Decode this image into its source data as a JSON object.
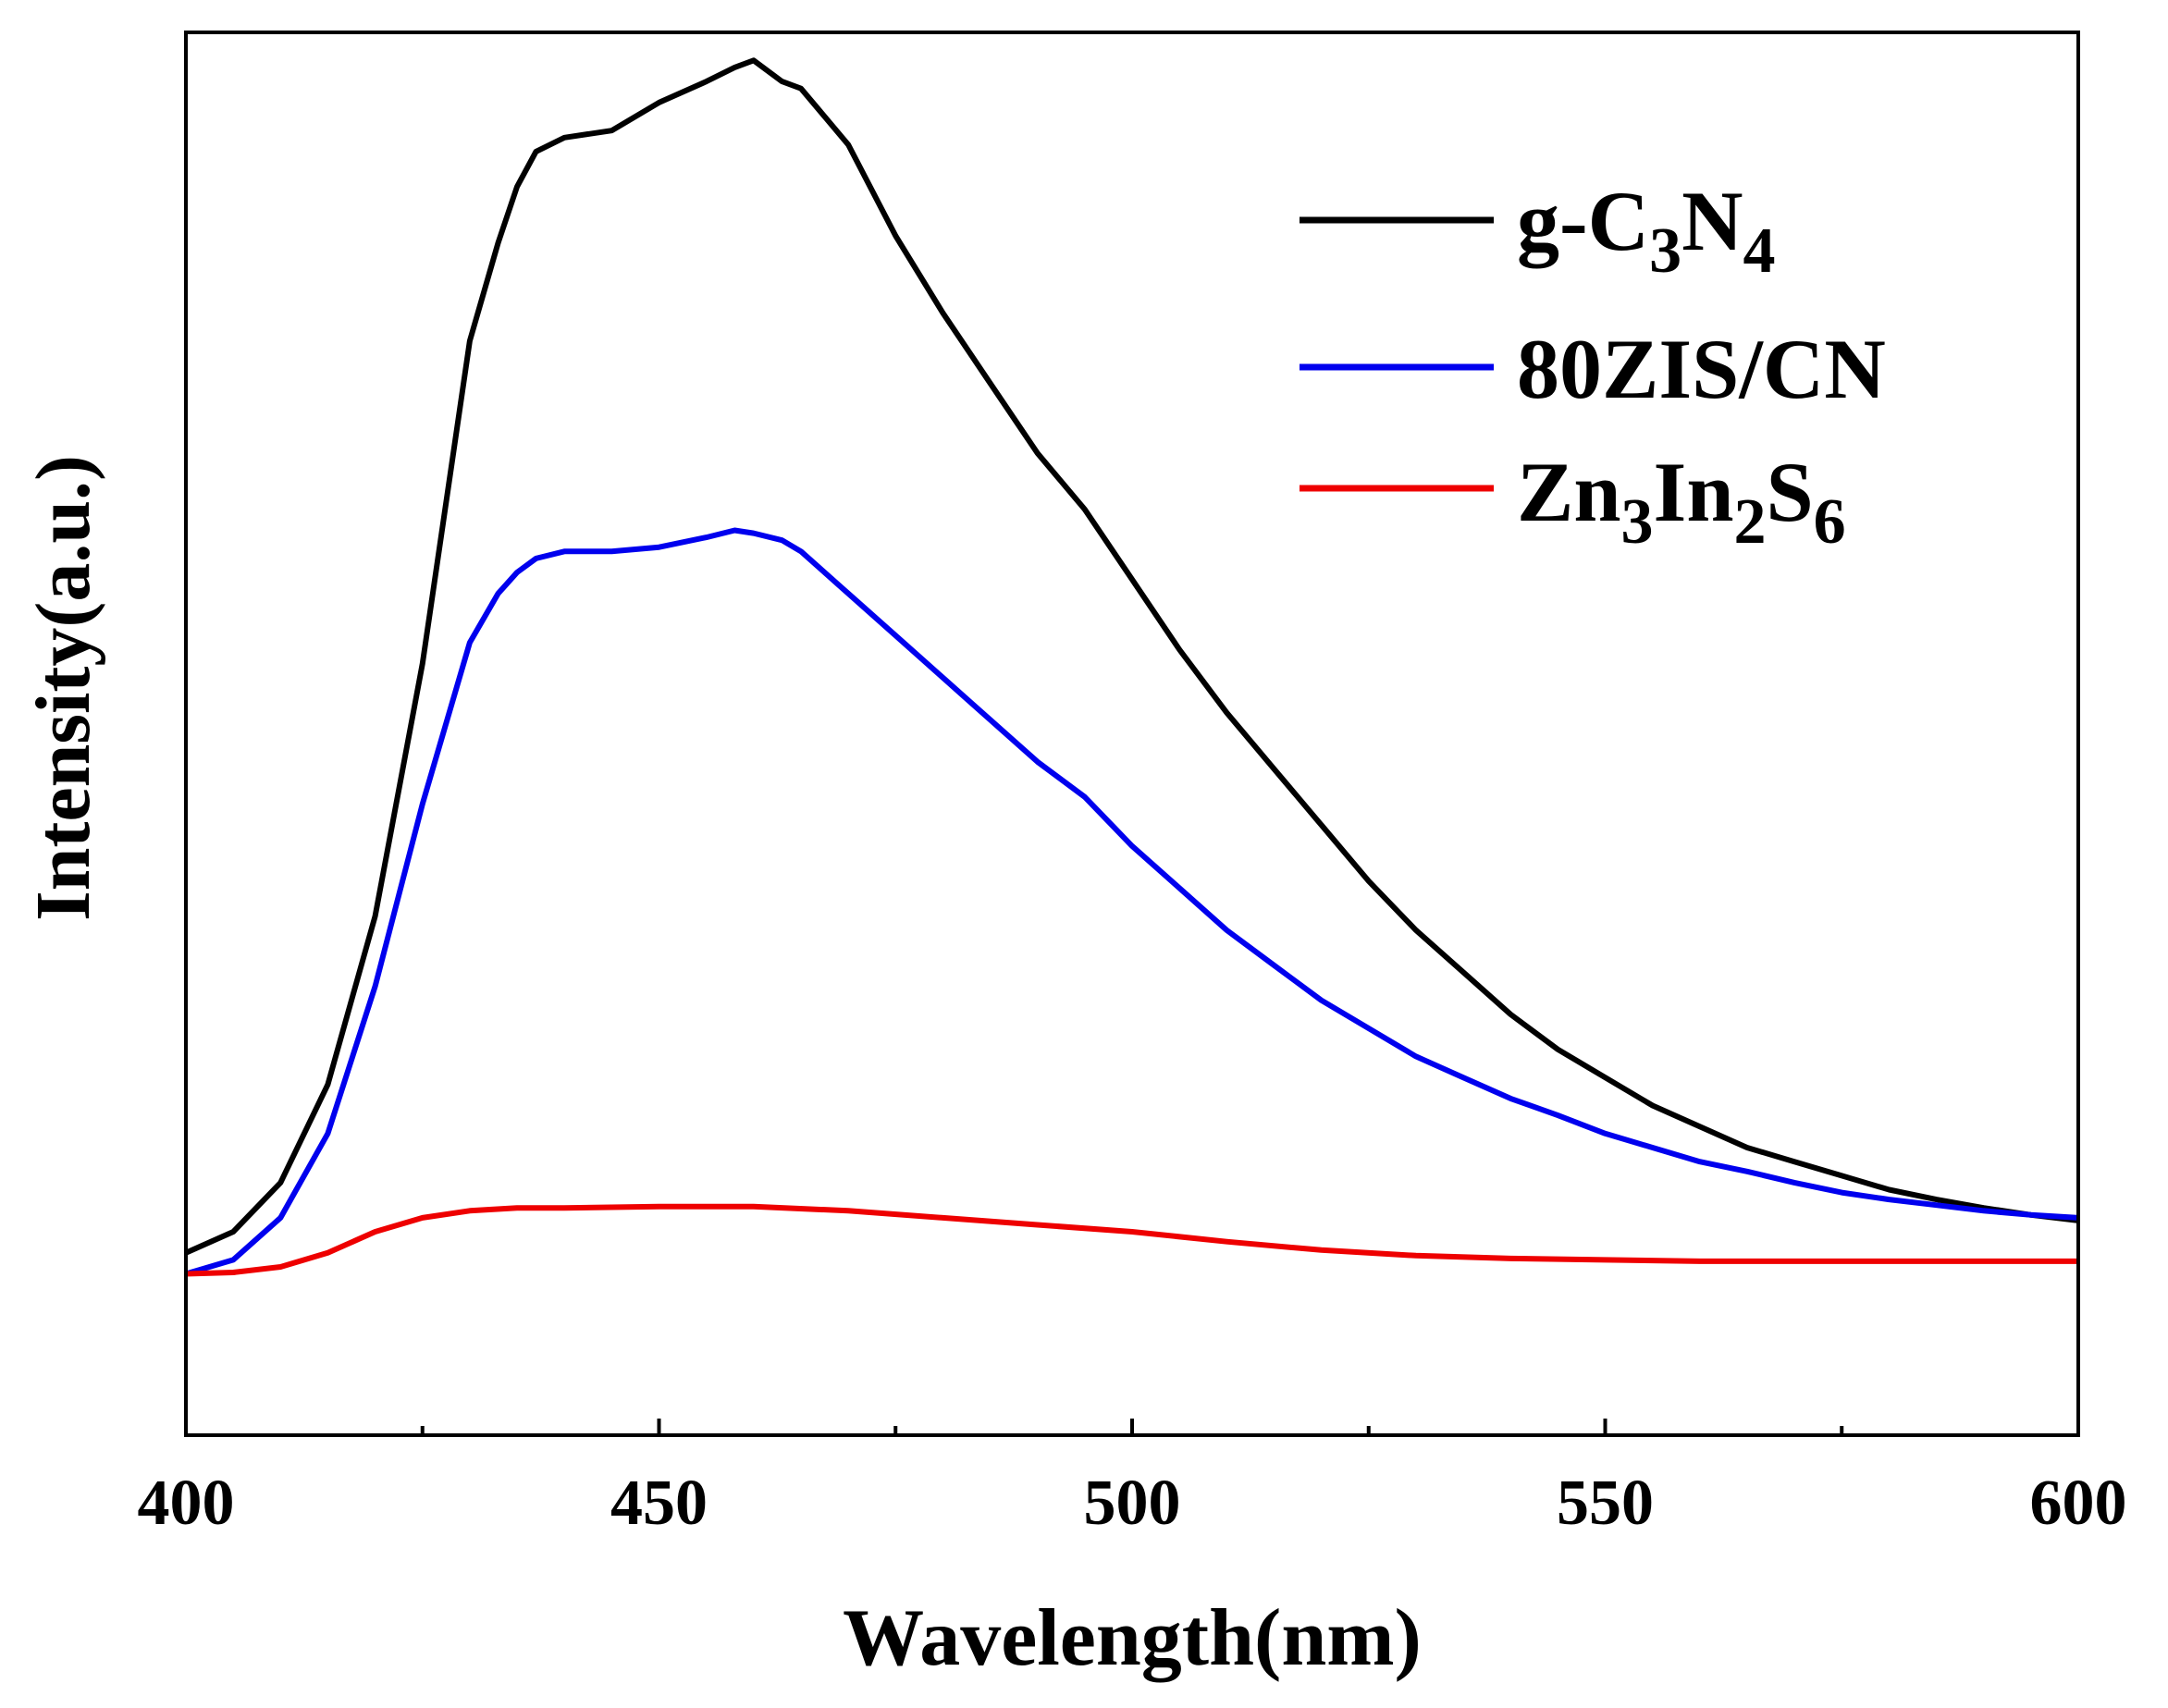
{
  "chart_data": {
    "type": "line",
    "title": "",
    "xlabel": "Wavelength(nm)",
    "ylabel": "Intensity(a.u.)",
    "xlim": [
      400,
      600
    ],
    "ylim": [
      0,
      1
    ],
    "x_ticks": [
      400,
      450,
      500,
      550,
      600
    ],
    "x_tick_labels": [
      "400",
      "450",
      "500",
      "550",
      "600"
    ],
    "x_minor_ticks": [
      425,
      475,
      525,
      575
    ],
    "y_ticks": [],
    "grid": false,
    "legend_position": "top-right",
    "series": [
      {
        "name": "g-C3N4",
        "legend_main": "g-C",
        "legend_sub1": "3",
        "legend_mid": "N",
        "legend_sub2": "4",
        "color": "#000000",
        "x": [
          400,
          405,
          410,
          415,
          420,
          425,
          430,
          433,
          435,
          437,
          440,
          445,
          450,
          455,
          458,
          460,
          463,
          465,
          470,
          475,
          480,
          485,
          490,
          495,
          500,
          505,
          510,
          515,
          520,
          525,
          530,
          535,
          540,
          545,
          550,
          555,
          560,
          565,
          570,
          575,
          580,
          585,
          590,
          595,
          600
        ],
        "y": [
          0.13,
          0.145,
          0.18,
          0.25,
          0.37,
          0.55,
          0.78,
          0.85,
          0.89,
          0.915,
          0.925,
          0.93,
          0.95,
          0.965,
          0.975,
          0.98,
          0.965,
          0.96,
          0.92,
          0.855,
          0.8,
          0.75,
          0.7,
          0.66,
          0.61,
          0.56,
          0.515,
          0.475,
          0.435,
          0.395,
          0.36,
          0.33,
          0.3,
          0.275,
          0.255,
          0.235,
          0.22,
          0.205,
          0.195,
          0.185,
          0.175,
          0.168,
          0.162,
          0.157,
          0.153
        ]
      },
      {
        "name": "80ZIS/CN",
        "legend_main": "80ZIS/CN",
        "color": "#0000ee",
        "x": [
          400,
          405,
          410,
          415,
          420,
          425,
          430,
          433,
          435,
          437,
          440,
          445,
          450,
          455,
          458,
          460,
          463,
          465,
          470,
          475,
          480,
          485,
          490,
          495,
          500,
          505,
          510,
          515,
          520,
          525,
          530,
          535,
          540,
          545,
          550,
          555,
          560,
          565,
          570,
          575,
          580,
          585,
          590,
          595,
          600
        ],
        "y": [
          0.115,
          0.125,
          0.155,
          0.215,
          0.32,
          0.45,
          0.565,
          0.6,
          0.615,
          0.625,
          0.63,
          0.63,
          0.633,
          0.64,
          0.645,
          0.643,
          0.638,
          0.63,
          0.6,
          0.57,
          0.54,
          0.51,
          0.48,
          0.455,
          0.42,
          0.39,
          0.36,
          0.335,
          0.31,
          0.29,
          0.27,
          0.255,
          0.24,
          0.228,
          0.215,
          0.205,
          0.195,
          0.188,
          0.18,
          0.173,
          0.168,
          0.164,
          0.16,
          0.157,
          0.155
        ]
      },
      {
        "name": "Zn3In2S6",
        "legend_main": "Zn",
        "legend_sub1": "3",
        "legend_mid": "In",
        "legend_sub2": "2",
        "legend_mid2": "S",
        "legend_sub3": "6",
        "color": "#ee0000",
        "x": [
          400,
          405,
          410,
          415,
          420,
          425,
          430,
          435,
          440,
          450,
          460,
          470,
          480,
          490,
          500,
          510,
          520,
          530,
          540,
          550,
          560,
          570,
          580,
          590,
          600
        ],
        "y": [
          0.115,
          0.116,
          0.12,
          0.13,
          0.145,
          0.155,
          0.16,
          0.162,
          0.162,
          0.163,
          0.163,
          0.16,
          0.155,
          0.15,
          0.145,
          0.138,
          0.132,
          0.128,
          0.126,
          0.125,
          0.124,
          0.124,
          0.124,
          0.124,
          0.124
        ]
      }
    ]
  }
}
